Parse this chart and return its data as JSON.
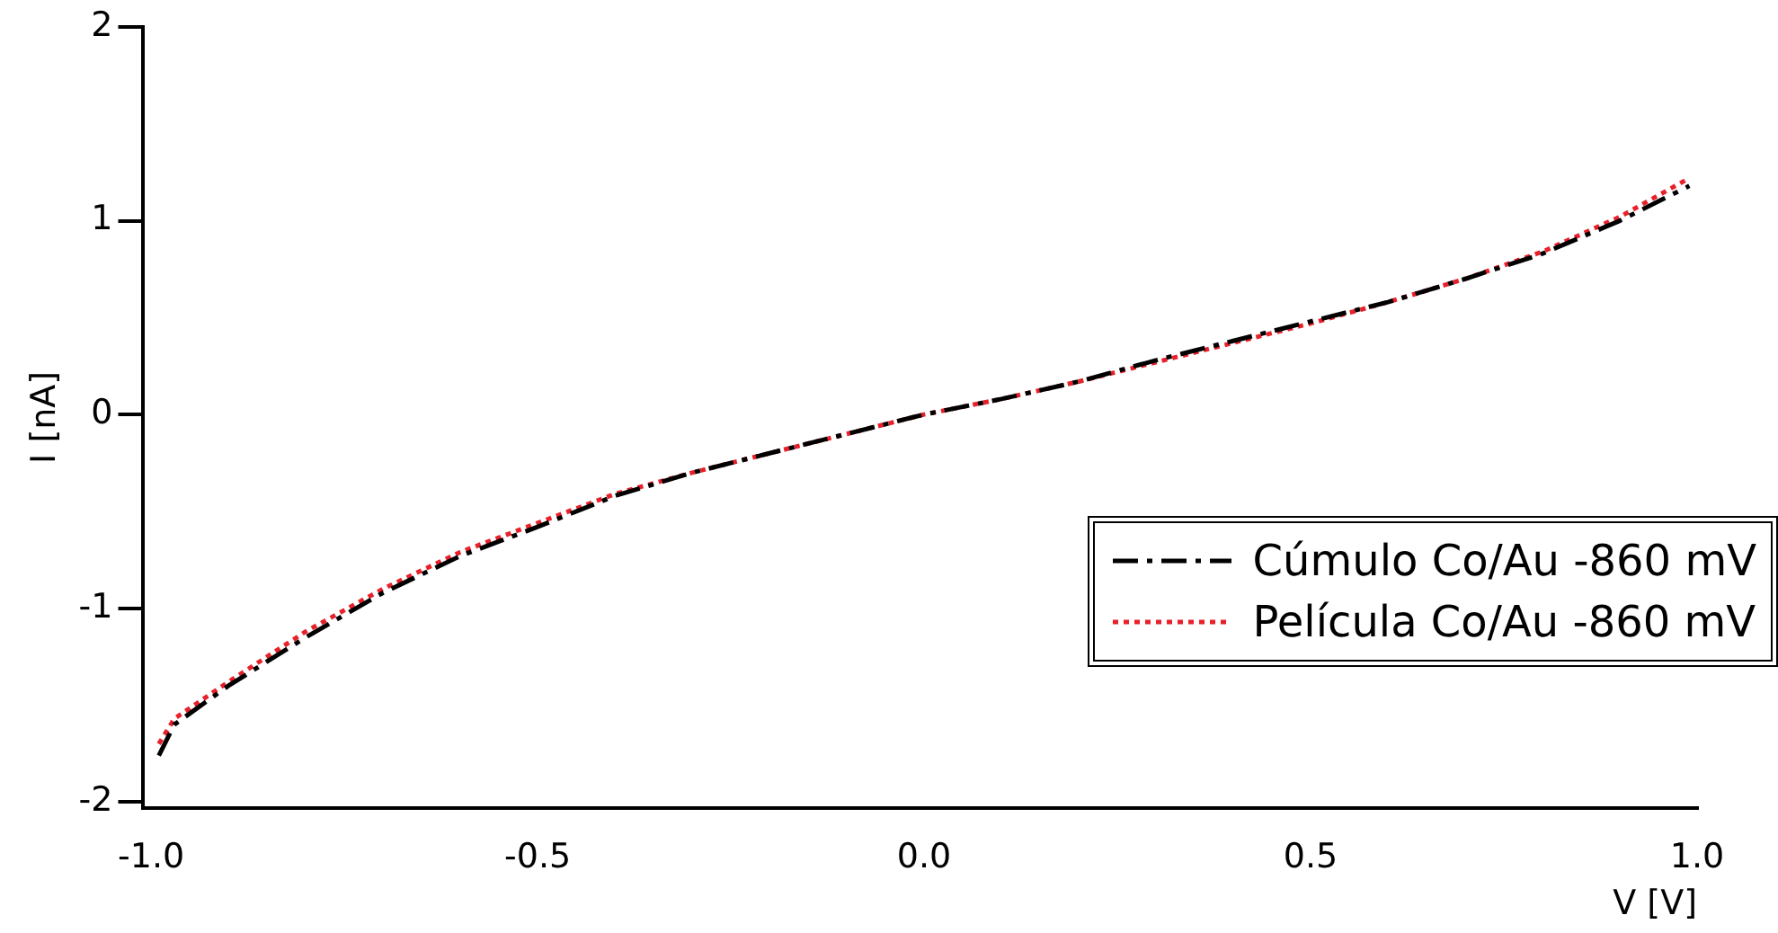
{
  "chart_data": {
    "type": "line",
    "xlabel": "V [V]",
    "ylabel": "I [nA]",
    "xlim": [
      -1.01,
      1.0
    ],
    "ylim": [
      -2.03,
      2
    ],
    "xticks": [
      {
        "value": -1,
        "label": "-1.0"
      },
      {
        "value": -0.5,
        "label": "-0.5"
      },
      {
        "value": 0,
        "label": "0.0"
      },
      {
        "value": 0.5,
        "label": "0.5"
      },
      {
        "value": 1,
        "label": "1.0"
      }
    ],
    "yticks": [
      -2,
      -1,
      0,
      1,
      2
    ],
    "grid": false,
    "legend": "bottom right",
    "marker": "none",
    "series": [
      {
        "name": "Cúmulo Co/Au -860 mV",
        "color": "#000000",
        "line_style": "dashed",
        "x": [
          -0.99,
          -0.97,
          -0.9,
          -0.8,
          -0.7,
          -0.6,
          -0.5,
          -0.4,
          -0.3,
          -0.2,
          -0.1,
          0,
          0.1,
          0.2,
          0.3,
          0.4,
          0.5,
          0.6,
          0.7,
          0.8,
          0.9,
          0.99
        ],
        "values": [
          -1.76,
          -1.6,
          -1.4,
          -1.15,
          -0.92,
          -0.73,
          -0.58,
          -0.42,
          -0.3,
          -0.2,
          -0.1,
          0,
          0.08,
          0.17,
          0.28,
          0.38,
          0.48,
          0.58,
          0.7,
          0.83,
          1.0,
          1.18
        ]
      },
      {
        "name": "Película Co/Au -860 mV",
        "color": "#e8202a",
        "line_style": "dotted",
        "x": [
          -0.99,
          -0.97,
          -0.9,
          -0.8,
          -0.7,
          -0.6,
          -0.5,
          -0.4,
          -0.3,
          -0.2,
          -0.1,
          0,
          0.1,
          0.2,
          0.3,
          0.4,
          0.5,
          0.6,
          0.7,
          0.8,
          0.9,
          0.99
        ],
        "values": [
          -1.7,
          -1.57,
          -1.38,
          -1.12,
          -0.9,
          -0.71,
          -0.56,
          -0.41,
          -0.3,
          -0.2,
          -0.1,
          0,
          0.08,
          0.17,
          0.27,
          0.37,
          0.47,
          0.58,
          0.7,
          0.84,
          1.02,
          1.22
        ]
      }
    ]
  }
}
